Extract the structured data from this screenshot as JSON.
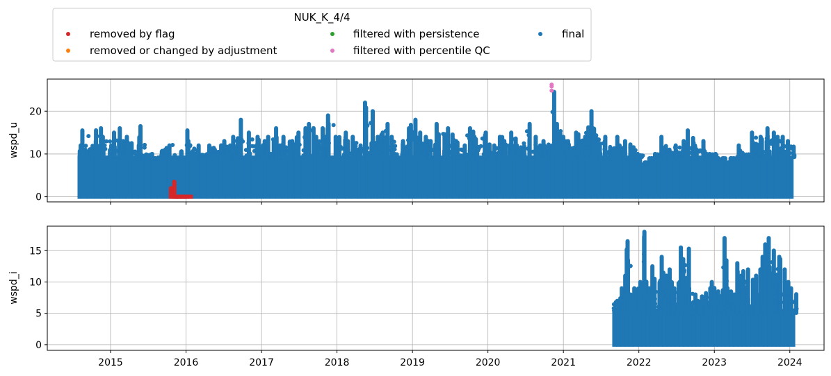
{
  "chart_data": {
    "type": "scatter",
    "legend": {
      "title": "NUK_K_4/4",
      "placement": "top-left",
      "entries": [
        {
          "label": "removed by flag",
          "color": "#d62728"
        },
        {
          "label": "removed or changed by adjustment",
          "color": "#ff7f0e"
        },
        {
          "label": "filtered with persistence",
          "color": "#2ca02c"
        },
        {
          "label": "filtered with percentile QC",
          "color": "#e377c2"
        },
        {
          "label": "final",
          "color": "#1f77b4"
        }
      ]
    },
    "x_ticks": [
      "2015",
      "2016",
      "2017",
      "2018",
      "2019",
      "2020",
      "2021",
      "2022",
      "2023",
      "2024"
    ],
    "xlim": [
      "2014-03-01",
      "2024-06-15"
    ],
    "grid": true,
    "panels": [
      {
        "ylabel": "wspd_u",
        "ylim": [
          -1.2,
          27.5
        ],
        "y_ticks": [
          0,
          10,
          20
        ],
        "series": [
          {
            "name": "final",
            "color": "#1f77b4",
            "x": [
              "2014-08-01",
              "2014-08-15",
              "2014-09-15",
              "2014-10-20",
              "2014-11-20",
              "2014-12-20",
              "2015-01-20",
              "2015-02-20",
              "2015-03-20",
              "2015-04-20",
              "2015-05-20",
              "2015-06-20",
              "2015-07-20",
              "2015-08-20",
              "2015-09-20",
              "2015-10-10",
              "2016-01-05",
              "2016-02-10",
              "2016-03-15",
              "2016-04-15",
              "2016-05-15",
              "2016-06-15",
              "2016-07-15",
              "2016-08-15",
              "2016-09-01",
              "2016-10-15",
              "2016-11-15",
              "2016-12-15",
              "2017-01-15",
              "2017-02-15",
              "2017-03-15",
              "2017-04-15",
              "2017-05-15",
              "2017-06-15",
              "2017-07-15",
              "2017-08-15",
              "2017-09-15",
              "2017-10-15",
              "2017-11-10",
              "2017-12-15",
              "2018-01-15",
              "2018-02-15",
              "2018-03-15",
              "2018-04-15",
              "2018-05-01",
              "2018-05-25",
              "2018-06-20",
              "2018-07-20",
              "2018-08-20",
              "2018-09-20",
              "2018-10-20",
              "2018-11-20",
              "2018-12-20",
              "2019-01-20",
              "2019-02-20",
              "2019-03-20",
              "2019-04-20",
              "2019-05-20",
              "2019-06-20",
              "2019-07-20",
              "2019-08-20",
              "2019-09-20",
              "2019-10-20",
              "2019-11-20",
              "2019-12-20",
              "2020-01-20",
              "2020-02-20",
              "2020-03-20",
              "2020-04-20",
              "2020-05-20",
              "2020-06-20",
              "2020-07-20",
              "2020-08-20",
              "2020-09-20",
              "2020-10-20",
              "2020-11-05",
              "2020-11-25",
              "2020-12-20",
              "2021-01-20",
              "2021-02-20",
              "2021-03-20",
              "2021-04-20",
              "2021-05-20",
              "2021-06-20",
              "2021-07-20",
              "2021-08-20",
              "2021-09-20",
              "2021-10-20",
              "2021-11-20",
              "2021-12-20",
              "2022-01-20",
              "2022-02-20",
              "2022-03-20",
              "2022-04-20",
              "2022-05-20",
              "2022-06-20",
              "2022-07-20",
              "2022-08-20",
              "2022-09-20",
              "2022-10-20",
              "2022-11-20",
              "2022-12-20",
              "2023-01-20",
              "2023-02-20",
              "2023-03-20",
              "2023-04-20",
              "2023-05-20",
              "2023-06-20",
              "2023-07-20",
              "2023-08-20",
              "2023-09-20",
              "2023-10-20",
              "2023-11-20",
              "2023-12-20"
            ],
            "y_min": [
              0,
              0,
              0,
              0,
              0,
              0,
              0,
              0,
              0,
              0,
              0,
              0,
              0,
              0,
              0,
              0,
              0,
              0,
              0,
              0,
              0,
              0,
              0,
              0,
              0,
              0,
              0,
              0,
              0,
              0,
              0,
              0,
              0,
              0,
              0,
              0,
              0,
              0,
              0,
              0,
              0,
              0,
              0,
              0,
              0,
              0,
              0,
              0,
              0,
              0,
              0,
              0,
              0,
              0,
              0,
              0,
              0,
              0,
              0,
              0,
              0,
              0,
              0,
              0,
              0,
              0,
              0,
              0,
              0,
              0,
              0,
              0,
              0,
              0,
              0,
              0,
              0,
              0,
              0,
              0,
              0,
              0,
              0,
              0,
              0,
              0,
              0,
              0,
              0,
              0,
              0,
              0,
              0,
              0,
              0,
              0,
              0,
              0,
              0,
              0,
              0,
              0,
              0,
              0,
              0,
              0,
              0,
              0,
              0,
              0,
              0,
              0,
              0,
              0
            ],
            "y_max": [
              12,
              15.5,
              13,
              16,
              14,
              15,
              16,
              13,
              14,
              12,
              16.5,
              10,
              9,
              11,
              12,
              15.5,
              13,
              12,
              10,
              12,
              11,
              13,
              12,
              14,
              18,
              15,
              14,
              13,
              14,
              16,
              12,
              14,
              13,
              15,
              16,
              17,
              14,
              16,
              19,
              14,
              15,
              13,
              14,
              12,
              22,
              20,
              14,
              15,
              17,
              14,
              13,
              16,
              18,
              15,
              14,
              13,
              17,
              16,
              15,
              13,
              12,
              16,
              14,
              15,
              13,
              12,
              14,
              13,
              15,
              12,
              17,
              14,
              12,
              13,
              12,
              24.5,
              17,
              14,
              13,
              15,
              14,
              20,
              16,
              14,
              13,
              14,
              12,
              13,
              12,
              10,
              8,
              9,
              10,
              14,
              11,
              12,
              13,
              15.5,
              12,
              13,
              10,
              10,
              9,
              8,
              9,
              12,
              10,
              15,
              14,
              16,
              15,
              14,
              14,
              13
            ]
          },
          {
            "name": "removed by flag",
            "color": "#d62728",
            "x": [
              "2015-10-20",
              "2015-11-05",
              "2015-11-20",
              "2015-12-10",
              "2015-12-28"
            ],
            "y_min": [
              0,
              0,
              0,
              0,
              0
            ],
            "y_max": [
              2,
              3.5,
              0,
              0,
              0
            ]
          },
          {
            "name": "filtered with percentile QC",
            "color": "#e377c2",
            "x": [
              "2020-11-05",
              "2020-11-05",
              "2020-11-05"
            ],
            "y_min": [
              24.8,
              25.8,
              26.2
            ],
            "y_max": [
              24.8,
              25.8,
              26.2
            ]
          }
        ]
      },
      {
        "ylabel": "wspd_i",
        "ylim": [
          -0.9,
          18.9
        ],
        "y_ticks": [
          0,
          5,
          10,
          15
        ],
        "series": [
          {
            "name": "final",
            "color": "#1f77b4",
            "x": [
              "2021-09-01",
              "2021-09-20",
              "2021-10-10",
              "2021-11-01",
              "2021-11-20",
              "2021-12-10",
              "2022-01-01",
              "2022-01-20",
              "2022-02-10",
              "2022-03-01",
              "2022-03-20",
              "2022-04-10",
              "2022-05-01",
              "2022-05-20",
              "2022-06-10",
              "2022-07-01",
              "2022-07-20",
              "2022-08-10",
              "2022-09-01",
              "2022-09-20",
              "2022-10-10",
              "2022-11-01",
              "2022-11-20",
              "2022-12-10",
              "2023-01-01",
              "2023-01-20",
              "2023-02-10",
              "2023-03-01",
              "2023-03-20",
              "2023-04-10",
              "2023-05-01",
              "2023-05-20",
              "2023-06-10",
              "2023-07-01",
              "2023-07-20",
              "2023-08-10",
              "2023-09-01",
              "2023-09-20",
              "2023-10-10",
              "2023-11-01",
              "2023-11-20",
              "2023-12-10",
              "2023-12-28"
            ],
            "y_min": [
              0,
              0,
              0,
              0,
              0,
              0,
              0,
              0,
              0,
              0,
              0,
              0,
              0,
              0,
              0,
              0,
              0,
              0,
              0,
              0,
              0,
              0,
              0,
              0,
              0,
              0,
              0,
              0,
              0,
              0,
              0,
              0,
              0,
              0,
              0,
              0,
              0,
              0,
              0,
              0,
              0,
              0,
              0
            ],
            "y_max": [
              7,
              9,
              11,
              16.5,
              8,
              9,
              10,
              18,
              9,
              12.5,
              10,
              14,
              11,
              12,
              9,
              10,
              15.5,
              15.3,
              9,
              8,
              7,
              8,
              9,
              10,
              8.5,
              8.7,
              17,
              9,
              8,
              13,
              11,
              12,
              10,
              11,
              12,
              14,
              16,
              17,
              15,
              14,
              12,
              10,
              9
            ]
          }
        ]
      }
    ]
  }
}
